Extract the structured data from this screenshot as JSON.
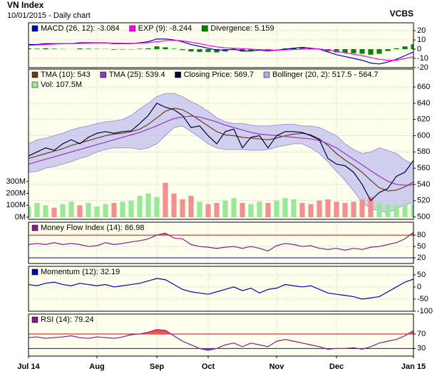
{
  "chart_data": [
    {
      "type": "line",
      "title": "VN Index",
      "subtitle": "10/01/2015 - Daily chart",
      "source": "VCBS",
      "ylim": [
        -20,
        28.5
      ],
      "yticks": [
        20,
        10,
        0,
        -10,
        -20
      ],
      "grid": true,
      "series": [
        {
          "name": "MACD (26, 12): -3.084",
          "color": "#0000cc",
          "type": "line",
          "values": [
            5,
            5,
            6,
            6,
            6,
            6,
            7,
            7,
            7,
            7,
            6,
            6,
            6,
            7,
            8,
            11,
            11,
            10,
            8,
            5,
            3,
            1,
            -1,
            -1,
            0,
            -2,
            -2,
            -1,
            -2,
            -1,
            0,
            1,
            2,
            1,
            0,
            -3,
            -6,
            -8,
            -10,
            -12,
            -15,
            -16,
            -14,
            -11,
            -7,
            -3
          ]
        },
        {
          "name": "EXP (9): -8.244",
          "color": "#ff00ff",
          "type": "line",
          "values": [
            4,
            4.5,
            5,
            5.5,
            5.8,
            6,
            6.2,
            6.5,
            6.7,
            6.8,
            6.6,
            6.4,
            6.3,
            6.5,
            7,
            8,
            9,
            9.5,
            9,
            7.5,
            6,
            4,
            2.5,
            1.5,
            1,
            0.5,
            0,
            -0.5,
            -1,
            -1,
            -0.8,
            -0.5,
            0,
            0.3,
            0.2,
            -0.8,
            -2.5,
            -4,
            -5.5,
            -7,
            -9,
            -11,
            -12,
            -12,
            -10,
            -8.2
          ]
        },
        {
          "name": "Divergence: 5.159",
          "color": "#008800",
          "type": "bar",
          "values": [
            1,
            0.5,
            1,
            0.5,
            0.2,
            0,
            0.8,
            0.5,
            0.3,
            0.2,
            -0.6,
            -0.4,
            -0.3,
            0.5,
            1,
            3,
            2,
            0.5,
            -1,
            -2.5,
            -3,
            -3,
            -3.5,
            -2.5,
            -1,
            -2.5,
            -2,
            -0.5,
            -1,
            0,
            0.8,
            1.5,
            2,
            0.7,
            -0.2,
            -2.2,
            -3.5,
            -4,
            -4.5,
            -5,
            -6,
            -5,
            -2,
            1,
            3,
            5.2
          ]
        }
      ]
    },
    {
      "type": "line",
      "ylim": [
        497,
        682
      ],
      "yticks": [
        660,
        640,
        620,
        600,
        580,
        560,
        540,
        520,
        500
      ],
      "grid": true,
      "y2lim": [
        -18,
        1245
      ],
      "y2ticks": [
        {
          "value": 0,
          "label": "0M"
        },
        {
          "value": 100,
          "label": "100M"
        },
        {
          "value": 200,
          "label": "200M"
        },
        {
          "value": 300,
          "label": "300M"
        }
      ],
      "series": [
        {
          "name": "TMA (10): 543",
          "color": "#6b3a1e",
          "type": "line",
          "values": [
            572,
            575,
            578,
            581,
            584,
            588,
            591,
            594,
            597,
            600,
            602,
            603,
            605,
            608,
            614,
            622,
            630,
            634,
            632,
            626,
            619,
            612,
            605,
            601,
            600,
            598,
            597,
            596,
            595,
            597,
            600,
            602,
            603,
            601,
            596,
            588,
            578,
            570,
            563,
            555,
            545,
            536,
            532,
            533,
            537,
            543
          ]
        },
        {
          "name": "TMA (25): 539.4",
          "color": "#9b30d0",
          "type": "line",
          "values": [
            565,
            568,
            571,
            574,
            577,
            580,
            583,
            586,
            589,
            592,
            595,
            598,
            601,
            604,
            608,
            612,
            617,
            621,
            623,
            624,
            623,
            620,
            617,
            613,
            610,
            607,
            604,
            602,
            601,
            600,
            599,
            598,
            597,
            596,
            594,
            590,
            585,
            578,
            571,
            564,
            557,
            550,
            544,
            540,
            539,
            539.4
          ]
        },
        {
          "name": "Closing Price: 569.7",
          "color": "#000033",
          "type": "line",
          "values": [
            575,
            580,
            585,
            582,
            590,
            595,
            590,
            598,
            603,
            605,
            603,
            605,
            606,
            615,
            625,
            640,
            635,
            632,
            625,
            610,
            612,
            600,
            590,
            605,
            608,
            585,
            598,
            600,
            585,
            600,
            605,
            605,
            604,
            600,
            595,
            572,
            565,
            563,
            555,
            540,
            520,
            530,
            535,
            550,
            555,
            569.7
          ]
        },
        {
          "name": "Bollinger (20, 2): 517.5 - 564.7",
          "color": "#aaaaee",
          "type": "band",
          "upper": [
            590,
            595,
            597,
            600,
            603,
            607,
            610,
            612,
            615,
            617,
            618,
            620,
            625,
            633,
            640,
            648,
            652,
            652,
            648,
            642,
            637,
            630,
            622,
            617,
            615,
            615,
            613,
            612,
            612,
            613,
            614,
            614,
            612,
            612,
            610,
            605,
            600,
            590,
            583,
            578,
            580,
            585,
            582,
            578,
            570,
            564.7
          ],
          "lower": [
            555,
            556,
            560,
            562,
            565,
            568,
            572,
            575,
            580,
            583,
            585,
            585,
            585,
            583,
            585,
            590,
            600,
            610,
            612,
            605,
            598,
            590,
            585,
            583,
            583,
            583,
            582,
            582,
            583,
            586,
            588,
            590,
            590,
            585,
            578,
            568,
            556,
            545,
            532,
            518,
            510,
            508,
            505,
            510,
            515,
            517.5
          ]
        },
        {
          "name": "Vol: 107.5M",
          "color": "#98e898",
          "type": "bar",
          "axis": "y2",
          "values": [
            90,
            120,
            100,
            80,
            110,
            130,
            100,
            120,
            90,
            110,
            120,
            130,
            140,
            180,
            200,
            170,
            290,
            200,
            150,
            180,
            130,
            110,
            120,
            140,
            160,
            120,
            110,
            130,
            120,
            140,
            160,
            150,
            120,
            110,
            140,
            150,
            130,
            120,
            130,
            150,
            170,
            120,
            110,
            100,
            110,
            107.5
          ],
          "colors": [
            "#98e898",
            "#98e898",
            "#98e898",
            "#f09090",
            "#98e898",
            "#98e898",
            "#f09090",
            "#98e898",
            "#98e898",
            "#98e898",
            "#f09090",
            "#98e898",
            "#98e898",
            "#98e898",
            "#98e898",
            "#98e898",
            "#f09090",
            "#f09090",
            "#f09090",
            "#f09090",
            "#98e898",
            "#f09090",
            "#f09090",
            "#98e898",
            "#98e898",
            "#f09090",
            "#98e898",
            "#98e898",
            "#f09090",
            "#98e898",
            "#98e898",
            "#98e898",
            "#f09090",
            "#f09090",
            "#f09090",
            "#f09090",
            "#f09090",
            "#f09090",
            "#f09090",
            "#f09090",
            "#f09090",
            "#98e898",
            "#98e898",
            "#98e898",
            "#98e898",
            "#98e898"
          ]
        }
      ]
    },
    {
      "type": "line",
      "ylim": [
        5,
        114
      ],
      "yticks": [
        80,
        50,
        20
      ],
      "ytick_colors": [
        "#d00000",
        "#000000",
        "#0000d0"
      ],
      "grid": true,
      "fill_above": "#ff5050",
      "fill_below": "#5050ff",
      "series": [
        {
          "name": "Money Flow Index (14): 86.98",
          "color": "#8b1a8b",
          "type": "line",
          "values": [
            55,
            58,
            55,
            60,
            55,
            58,
            55,
            50,
            52,
            60,
            55,
            58,
            62,
            65,
            70,
            80,
            85,
            72,
            70,
            55,
            50,
            48,
            45,
            48,
            50,
            45,
            50,
            45,
            38,
            52,
            58,
            55,
            50,
            52,
            45,
            42,
            45,
            40,
            45,
            42,
            48,
            50,
            55,
            60,
            70,
            86.98
          ]
        }
      ]
    },
    {
      "type": "line",
      "ylim": [
        -100,
        85
      ],
      "yticks": [
        50,
        0,
        -50,
        -100
      ],
      "grid": true,
      "series": [
        {
          "name": "Momentum (12): 32.19",
          "color": "#0000cc",
          "type": "line",
          "values": [
            10,
            5,
            15,
            20,
            10,
            5,
            15,
            10,
            5,
            10,
            0,
            5,
            10,
            15,
            25,
            35,
            30,
            10,
            -10,
            -20,
            -25,
            -30,
            -20,
            -10,
            0,
            -15,
            -5,
            -25,
            -10,
            -5,
            10,
            5,
            0,
            5,
            -10,
            -25,
            -30,
            -35,
            -40,
            -50,
            -45,
            -40,
            -20,
            0,
            20,
            32.19
          ]
        }
      ]
    },
    {
      "type": "line",
      "ylim": [
        9,
        125
      ],
      "yticks": [
        70,
        30
      ],
      "ytick_colors": [
        "#d00000",
        "#0000d0"
      ],
      "grid": true,
      "fill_above": "#ff5050",
      "fill_below": "#5050ff",
      "categories": [
        "Jul 14",
        null,
        null,
        null,
        null,
        null,
        null,
        null,
        "Aug",
        null,
        null,
        null,
        null,
        null,
        null,
        "Sep",
        null,
        null,
        null,
        null,
        null,
        "Oct",
        null,
        null,
        null,
        null,
        null,
        null,
        null,
        "Nov",
        null,
        null,
        null,
        null,
        null,
        null,
        "Dec",
        null,
        null,
        null,
        null,
        null,
        null,
        null,
        null,
        "Jan 15"
      ],
      "series": [
        {
          "name": "RSI (14): 79.24",
          "color": "#8b1a8b",
          "type": "line",
          "values": [
            60,
            62,
            58,
            60,
            62,
            65,
            60,
            58,
            62,
            60,
            58,
            62,
            68,
            70,
            75,
            82,
            80,
            65,
            50,
            40,
            30,
            25,
            30,
            40,
            45,
            35,
            45,
            40,
            35,
            50,
            55,
            50,
            45,
            40,
            35,
            28,
            30,
            30,
            32,
            28,
            35,
            45,
            50,
            55,
            65,
            79.24
          ]
        }
      ]
    }
  ]
}
